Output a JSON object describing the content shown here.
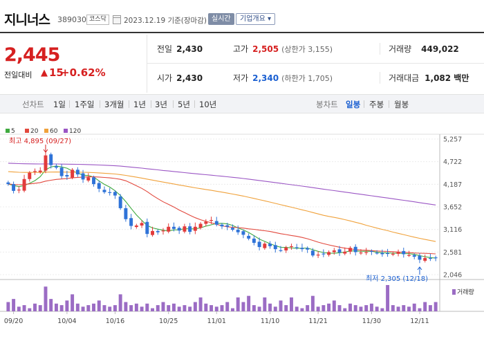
{
  "header": {
    "name": "지니너스",
    "code": "389030",
    "market": "코스닥",
    "as_of": "2023.12.19  기준(장마감)",
    "realtime_btn": "실시간",
    "overview_btn": "기업개요 ▾"
  },
  "price": {
    "current": "2,445",
    "change_label": "전일대비",
    "change_value": "15",
    "change_pct": "+0.62%",
    "up_color": "#d62020"
  },
  "stats": {
    "prev_close_label": "전일",
    "prev_close": "2,430",
    "high_label": "고가",
    "high": "2,505",
    "upper_limit": "(상한가 3,155)",
    "volume_label": "거래량",
    "volume": "449,022",
    "open_label": "시가",
    "open": "2,430",
    "low_label": "저가",
    "low": "2,340",
    "lower_limit": "(하한가 1,705)",
    "amount_label": "거래대금",
    "amount": "1,082 백만"
  },
  "period_bar": {
    "line_label": "선차트",
    "line_tabs": [
      "1일",
      "1주일",
      "3개월",
      "1년",
      "3년",
      "5년",
      "10년"
    ],
    "candle_label": "봉차트",
    "candle_tabs": [
      "일봉",
      "주봉",
      "월봉"
    ],
    "active_candle": "일봉"
  },
  "chart_data": {
    "type": "candlestick",
    "legend": [
      {
        "name": "5",
        "color": "#3faa3f"
      },
      {
        "name": "20",
        "color": "#e2483d"
      },
      {
        "name": "60",
        "color": "#f0a13a"
      },
      {
        "name": "120",
        "color": "#9a55c4"
      }
    ],
    "y_ticks": [
      "5,257",
      "4,722",
      "4,187",
      "3,652",
      "3,116",
      "2,581",
      "2,046"
    ],
    "y_min": 2046,
    "y_max": 5257,
    "x_ticks": [
      "09/20",
      "10/04",
      "10/16",
      "10/25",
      "11/01",
      "11/10",
      "11/21",
      "11/30",
      "12/11"
    ],
    "high_note": "최고 4,895 (09/27)",
    "low_note": "최저 2,305 (12/18)",
    "volume_label": "거래량",
    "up_color": "#e23b3b",
    "down_color": "#2f73d8",
    "closes": [
      4190,
      4030,
      4060,
      4310,
      4460,
      4500,
      4510,
      4870,
      4640,
      4580,
      4380,
      4370,
      4530,
      4420,
      4300,
      4350,
      4190,
      4080,
      4000,
      3980,
      3920,
      3620,
      3360,
      3200,
      3210,
      3270,
      3010,
      3080,
      3050,
      3090,
      3180,
      3130,
      3090,
      3190,
      3060,
      3180,
      3250,
      3300,
      3340,
      3230,
      3190,
      3180,
      3110,
      3050,
      2990,
      2900,
      2800,
      2700,
      2780,
      2720,
      2650,
      2620,
      2690,
      2720,
      2680,
      2650,
      2640,
      2500,
      2520,
      2540,
      2580,
      2620,
      2570,
      2590,
      2680,
      2580,
      2570,
      2580,
      2590,
      2560,
      2530,
      2550,
      2540,
      2580,
      2530,
      2510,
      2470,
      2400,
      2440,
      2430,
      2445
    ],
    "volumes": [
      12,
      16,
      6,
      8,
      4,
      10,
      8,
      32,
      16,
      10,
      8,
      14,
      22,
      10,
      6,
      8,
      10,
      14,
      8,
      6,
      8,
      22,
      12,
      8,
      10,
      6,
      10,
      4,
      8,
      12,
      8,
      10,
      6,
      8,
      6,
      12,
      18,
      10,
      8,
      6,
      8,
      12,
      4,
      18,
      12,
      20,
      8,
      6,
      18,
      10,
      6,
      14,
      8,
      18,
      6,
      4,
      8,
      20,
      6,
      8,
      10,
      14,
      8,
      4,
      10,
      8,
      6,
      8,
      10,
      6,
      4,
      34,
      8,
      6,
      8,
      6,
      10,
      4,
      12,
      8,
      12
    ]
  }
}
